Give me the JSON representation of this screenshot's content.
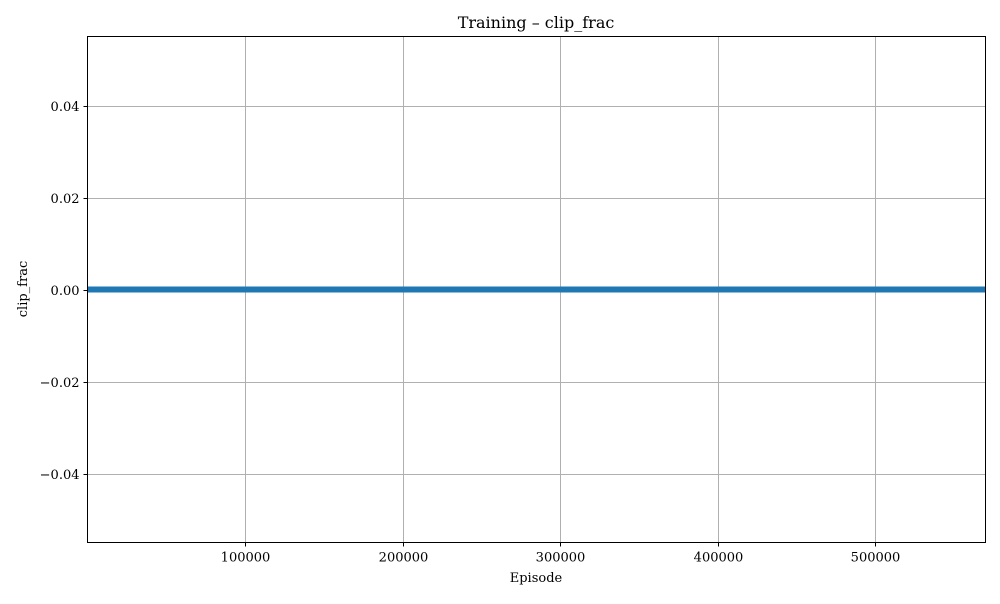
{
  "chart_data": {
    "type": "line",
    "title": "Training – clip_frac",
    "xlabel": "Episode",
    "ylabel": "clip_frac",
    "xlim": [
      0,
      570000
    ],
    "ylim": [
      -0.055,
      0.055
    ],
    "x_ticks": [
      100000,
      200000,
      300000,
      400000,
      500000
    ],
    "x_tick_labels": [
      "100000",
      "200000",
      "300000",
      "400000",
      "500000"
    ],
    "y_ticks": [
      -0.04,
      -0.02,
      0.0,
      0.02,
      0.04
    ],
    "y_tick_labels": [
      "−0.04",
      "−0.02",
      "0.00",
      "0.02",
      "0.04"
    ],
    "grid": true,
    "series": [
      {
        "color": "#1f77b4",
        "x": [
          0,
          570000
        ],
        "y": [
          0.0,
          0.0
        ]
      }
    ]
  }
}
